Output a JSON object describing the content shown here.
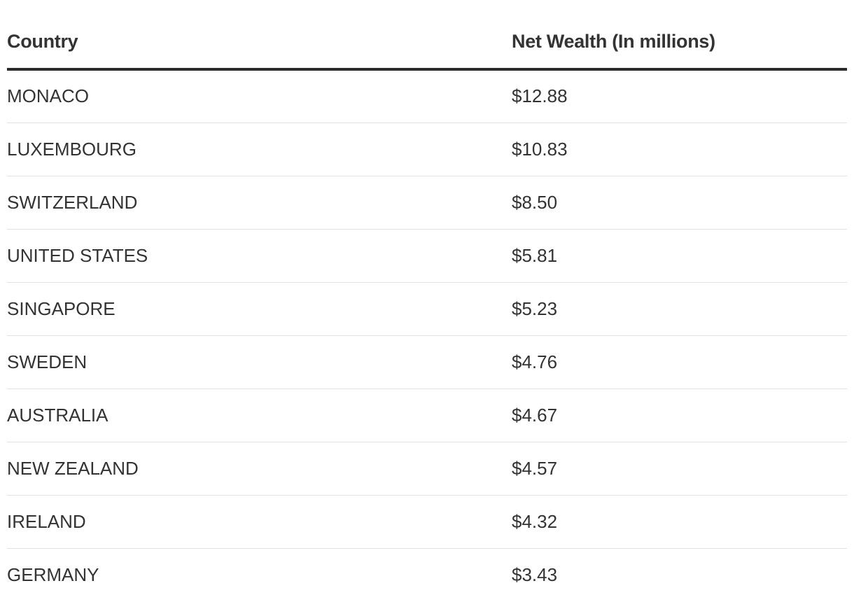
{
  "chart_data": {
    "type": "table",
    "columns": [
      "Country",
      "Net Wealth (In millions)"
    ],
    "rows": [
      {
        "country": "MONACO",
        "net_wealth": "$12.88"
      },
      {
        "country": "LUXEMBOURG",
        "net_wealth": "$10.83"
      },
      {
        "country": "SWITZERLAND",
        "net_wealth": "$8.50"
      },
      {
        "country": "UNITED STATES",
        "net_wealth": "$5.81"
      },
      {
        "country": "SINGAPORE",
        "net_wealth": "$5.23"
      },
      {
        "country": "SWEDEN",
        "net_wealth": "$4.76"
      },
      {
        "country": "AUSTRALIA",
        "net_wealth": "$4.67"
      },
      {
        "country": "NEW ZEALAND",
        "net_wealth": "$4.57"
      },
      {
        "country": "IRELAND",
        "net_wealth": "$4.32"
      },
      {
        "country": "GERMANY",
        "net_wealth": "$3.43"
      }
    ]
  }
}
